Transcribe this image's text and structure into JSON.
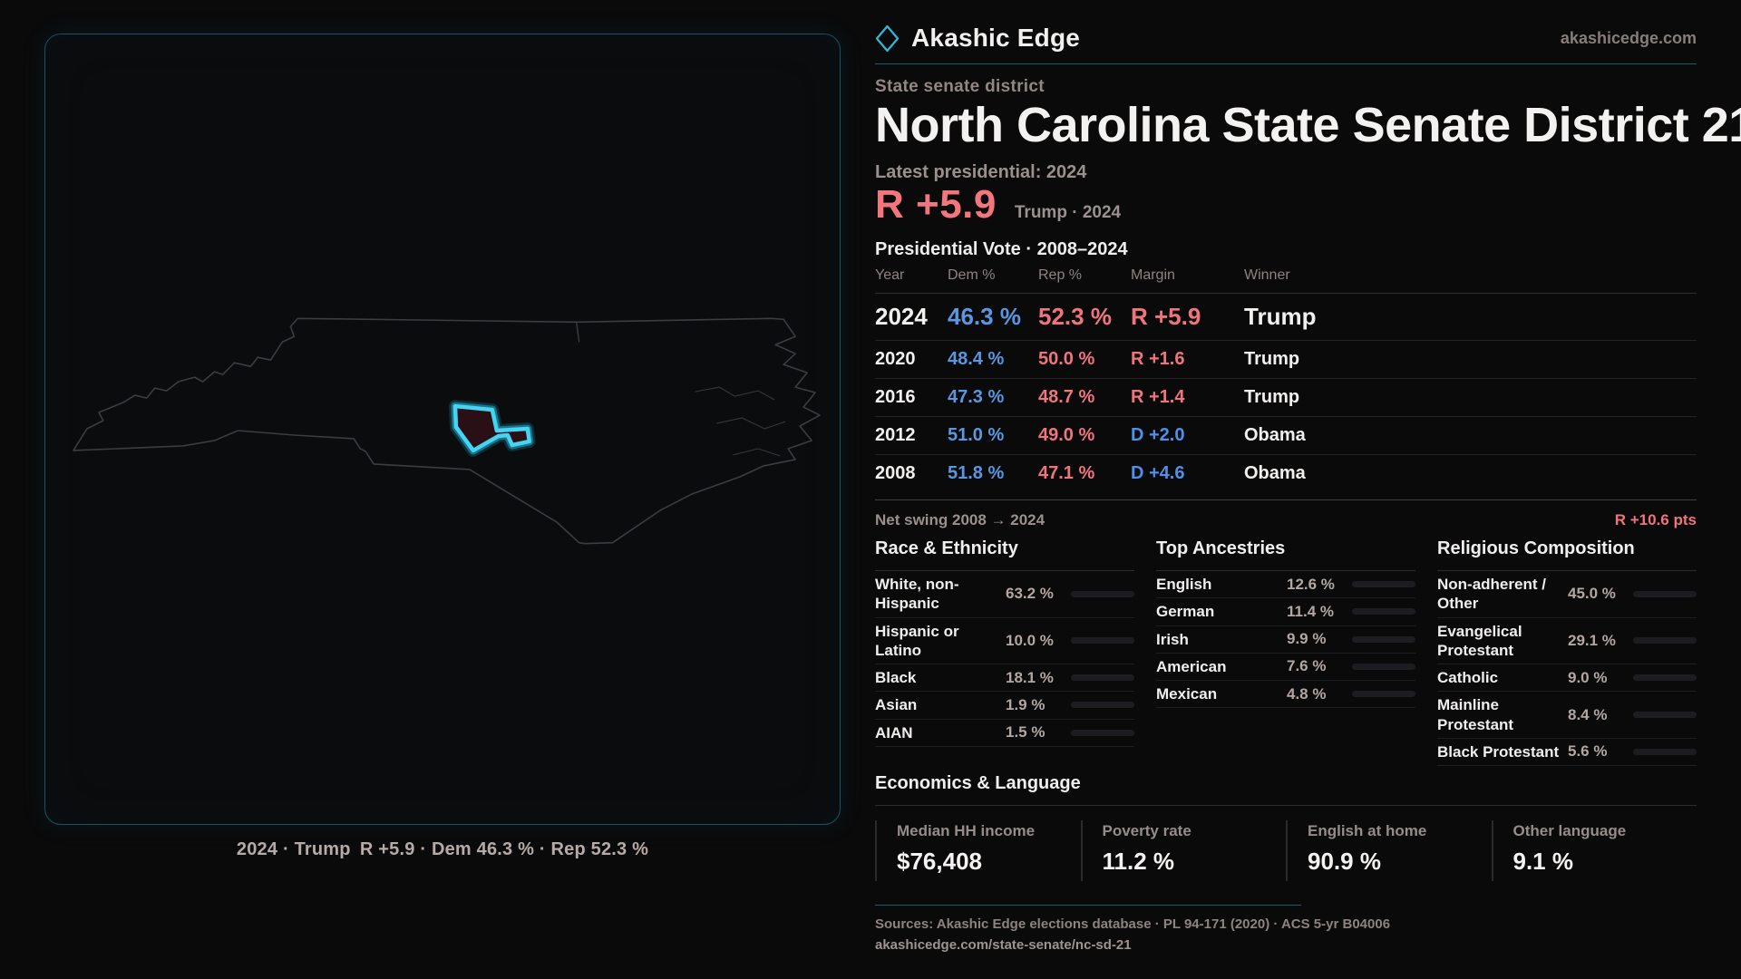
{
  "brand": {
    "name": "Akashic Edge",
    "domain": "akashicedge.com"
  },
  "page": {
    "kicker": "State senate district",
    "title": "North Carolina State Senate District 21"
  },
  "headline": {
    "label": "Latest presidential: 2024",
    "margin": "R +5.9",
    "context": "Trump · 2024"
  },
  "table": {
    "title": "Presidential Vote · 2008–2024",
    "columns": [
      "Year",
      "Dem %",
      "Rep %",
      "Margin",
      "Winner"
    ],
    "rows": [
      {
        "year": "2024",
        "dem": "46.3 %",
        "rep": "52.3 %",
        "margin": "R +5.9",
        "margin_party": "R",
        "winner": "Trump"
      },
      {
        "year": "2020",
        "dem": "48.4 %",
        "rep": "50.0 %",
        "margin": "R +1.6",
        "margin_party": "R",
        "winner": "Trump"
      },
      {
        "year": "2016",
        "dem": "47.3 %",
        "rep": "48.7 %",
        "margin": "R +1.4",
        "margin_party": "R",
        "winner": "Trump"
      },
      {
        "year": "2012",
        "dem": "51.0 %",
        "rep": "49.0 %",
        "margin": "D +2.0",
        "margin_party": "D",
        "winner": "Obama"
      },
      {
        "year": "2008",
        "dem": "51.8 %",
        "rep": "47.1 %",
        "margin": "D +4.6",
        "margin_party": "D",
        "winner": "Obama"
      }
    ]
  },
  "net_swing": {
    "label": "Net swing 2008 → 2024",
    "value": "R +10.6 pts"
  },
  "demographics": {
    "race": {
      "title": "Race & Ethnicity",
      "rows": [
        {
          "label": "White, non-Hispanic",
          "value": "63.2 %",
          "pct": 63.2,
          "color": "#9db0c6"
        },
        {
          "label": "Hispanic or Latino",
          "value": "10.0 %",
          "pct": 10.0,
          "color": "#e8a33d"
        },
        {
          "label": "Black",
          "value": "18.1 %",
          "pct": 18.1,
          "color": "#9b8cf2"
        },
        {
          "label": "Asian",
          "value": "1.9 %",
          "pct": 1.9,
          "color": "#4fd8c4"
        },
        {
          "label": "AIAN",
          "value": "1.5 %",
          "pct": 1.5,
          "color": "#e07b39"
        }
      ]
    },
    "ancestries": {
      "title": "Top Ancestries",
      "rows": [
        {
          "label": "English",
          "value": "12.6 %",
          "pct": 12.6,
          "color": "#9db0c6"
        },
        {
          "label": "German",
          "value": "11.4 %",
          "pct": 11.4,
          "color": "#9db0c6"
        },
        {
          "label": "Irish",
          "value": "9.9 %",
          "pct": 9.9,
          "color": "#9db0c6"
        },
        {
          "label": "American",
          "value": "7.6 %",
          "pct": 7.6,
          "color": "#9db0c6"
        },
        {
          "label": "Mexican",
          "value": "4.8 %",
          "pct": 4.8,
          "color": "#eeb03f"
        }
      ]
    },
    "religion": {
      "title": "Religious Composition",
      "rows": [
        {
          "label": "Non-adherent / Other",
          "value": "45.0 %",
          "pct": 45.0,
          "color": "#6e7787"
        },
        {
          "label": "Evangelical Protestant",
          "value": "29.1 %",
          "pct": 29.1,
          "color": "#e8686f"
        },
        {
          "label": "Catholic",
          "value": "9.0 %",
          "pct": 9.0,
          "color": "#eab23e"
        },
        {
          "label": "Mainline Protestant",
          "value": "8.4 %",
          "pct": 8.4,
          "color": "#4e8fe6"
        },
        {
          "label": "Black Protestant",
          "value": "5.6 %",
          "pct": 5.6,
          "color": "#8f7bf0"
        }
      ]
    }
  },
  "economics": {
    "title": "Economics & Language",
    "cards": [
      {
        "label": "Median HH income",
        "value": "$76,408"
      },
      {
        "label": "Poverty rate",
        "value": "11.2 %"
      },
      {
        "label": "English at home",
        "value": "90.9 %"
      },
      {
        "label": "Other language",
        "value": "9.1 %"
      }
    ]
  },
  "map": {
    "caption": "2024 · Trump R +5.9 · Dem 46.3 % · Rep 52.3 %"
  },
  "footer": {
    "sources": "Sources: Akashic Edge elections database · PL 94-171 (2020) · ACS 5-yr B04006",
    "permalink": "akashicedge.com/state-senate/nc-sd-21"
  },
  "colors": {
    "accent_teal": "#2fb9d8",
    "district_highlight": "#45d4f2",
    "dem_blue": "#5b97e0",
    "rep_red": "#ef757d",
    "background": "#0a0a0b"
  }
}
